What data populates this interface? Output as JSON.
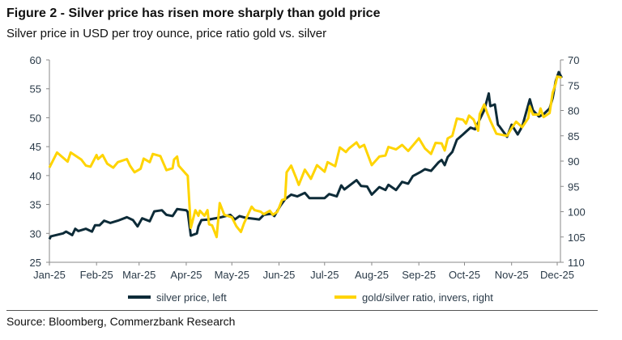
{
  "title": "Figure 2 - Silver price has risen more sharply than gold price",
  "subtitle": "Silver price in USD per troy ounce, price ratio gold vs. silver",
  "source": "Source: Bloomberg, Commerzbank Research",
  "chart_data": {
    "type": "line",
    "title": "Figure 2 - Silver price has risen more sharply than gold price",
    "subtitle": "Silver price in USD per troy ounce, price ratio gold vs. silver",
    "x_tick_labels": [
      "Jan-25",
      "Feb-25",
      "Mar-25",
      "Apr-25",
      "May-25",
      "Jun-25",
      "Jul-25",
      "Aug-25",
      "Sep-25",
      "Oct-25",
      "Nov-25",
      "Dec-25"
    ],
    "y_left": {
      "range": [
        25,
        60
      ],
      "ticks": [
        25,
        30,
        35,
        40,
        45,
        50,
        55,
        60
      ]
    },
    "y_right": {
      "range": [
        70,
        110
      ],
      "inverted": true,
      "ticks": [
        70,
        75,
        80,
        85,
        90,
        95,
        100,
        105,
        110
      ]
    },
    "grid": false,
    "legend_position": "bottom",
    "series": [
      {
        "name": "silver price, left",
        "axis": "left",
        "color": "#0d2b38",
        "points": [
          [
            "2025-01-01",
            29.0
          ],
          [
            "2025-01-02",
            29.5
          ],
          [
            "2025-01-10",
            30.0
          ],
          [
            "2025-01-12",
            30.3
          ],
          [
            "2025-01-16",
            29.7
          ],
          [
            "2025-01-18",
            30.8
          ],
          [
            "2025-01-20",
            30.4
          ],
          [
            "2025-01-25",
            30.8
          ],
          [
            "2025-01-29",
            30.3
          ],
          [
            "2025-01-31",
            31.4
          ],
          [
            "2025-02-03",
            31.4
          ],
          [
            "2025-02-06",
            32.2
          ],
          [
            "2025-02-10",
            31.8
          ],
          [
            "2025-02-15",
            32.2
          ],
          [
            "2025-02-21",
            32.8
          ],
          [
            "2025-02-25",
            32.3
          ],
          [
            "2025-02-28",
            31.2
          ],
          [
            "2025-03-03",
            32.6
          ],
          [
            "2025-03-08",
            32.1
          ],
          [
            "2025-03-11",
            33.8
          ],
          [
            "2025-03-16",
            34.0
          ],
          [
            "2025-03-19",
            33.2
          ],
          [
            "2025-03-23",
            33.0
          ],
          [
            "2025-03-26",
            34.2
          ],
          [
            "2025-04-01",
            34.0
          ],
          [
            "2025-04-02",
            33.7
          ],
          [
            "2025-04-04",
            29.6
          ],
          [
            "2025-04-08",
            30.0
          ],
          [
            "2025-04-09",
            31.2
          ],
          [
            "2025-04-11",
            32.3
          ],
          [
            "2025-04-16",
            32.4
          ],
          [
            "2025-04-24",
            32.8
          ],
          [
            "2025-04-30",
            33.2
          ],
          [
            "2025-05-03",
            32.4
          ],
          [
            "2025-05-06",
            33.0
          ],
          [
            "2025-05-10",
            32.7
          ],
          [
            "2025-05-16",
            32.5
          ],
          [
            "2025-05-19",
            32.4
          ],
          [
            "2025-05-22",
            33.2
          ],
          [
            "2025-05-27",
            33.4
          ],
          [
            "2025-05-29",
            33.0
          ],
          [
            "2025-06-02",
            34.8
          ],
          [
            "2025-06-05",
            35.9
          ],
          [
            "2025-06-09",
            36.7
          ],
          [
            "2025-06-13",
            36.4
          ],
          [
            "2025-06-18",
            37.0
          ],
          [
            "2025-06-21",
            36.1
          ],
          [
            "2025-07-01",
            36.1
          ],
          [
            "2025-07-04",
            36.8
          ],
          [
            "2025-07-09",
            36.4
          ],
          [
            "2025-07-12",
            38.3
          ],
          [
            "2025-07-14",
            37.6
          ],
          [
            "2025-07-22",
            39.2
          ],
          [
            "2025-07-25",
            38.2
          ],
          [
            "2025-07-29",
            38.1
          ],
          [
            "2025-08-01",
            36.7
          ],
          [
            "2025-08-06",
            38.0
          ],
          [
            "2025-08-10",
            37.5
          ],
          [
            "2025-08-12",
            38.4
          ],
          [
            "2025-08-17",
            37.5
          ],
          [
            "2025-08-21",
            38.9
          ],
          [
            "2025-08-25",
            38.6
          ],
          [
            "2025-08-28",
            39.9
          ],
          [
            "2025-09-02",
            40.6
          ],
          [
            "2025-09-05",
            41.1
          ],
          [
            "2025-09-09",
            40.8
          ],
          [
            "2025-09-14",
            42.3
          ],
          [
            "2025-09-16",
            42.7
          ],
          [
            "2025-09-18",
            41.8
          ],
          [
            "2025-09-20",
            43.2
          ],
          [
            "2025-09-23",
            44.1
          ],
          [
            "2025-09-26",
            46.2
          ],
          [
            "2025-09-30",
            47.1
          ],
          [
            "2025-10-02",
            47.6
          ],
          [
            "2025-10-05",
            48.3
          ],
          [
            "2025-10-08",
            48.0
          ],
          [
            "2025-10-11",
            49.7
          ],
          [
            "2025-10-14",
            51.3
          ],
          [
            "2025-10-17",
            54.2
          ],
          [
            "2025-10-18",
            52.0
          ],
          [
            "2025-10-21",
            52.3
          ],
          [
            "2025-10-23",
            48.8
          ],
          [
            "2025-10-24",
            48.5
          ],
          [
            "2025-10-29",
            46.7
          ],
          [
            "2025-11-01",
            48.8
          ],
          [
            "2025-11-05",
            47.1
          ],
          [
            "2025-11-08",
            48.5
          ],
          [
            "2025-11-13",
            53.2
          ],
          [
            "2025-11-15",
            51.3
          ],
          [
            "2025-11-19",
            50.2
          ],
          [
            "2025-11-22",
            50.6
          ],
          [
            "2025-11-26",
            51.6
          ],
          [
            "2025-11-28",
            53.4
          ],
          [
            "2025-11-30",
            56.3
          ],
          [
            "2025-12-02",
            57.9
          ],
          [
            "2025-12-04",
            56.9
          ]
        ]
      },
      {
        "name": "gold/silver ratio, invers, right",
        "axis": "right",
        "color": "#ffd400",
        "points": [
          [
            "2025-01-01",
            91.3
          ],
          [
            "2025-01-06",
            88.3
          ],
          [
            "2025-01-13",
            90.1
          ],
          [
            "2025-01-15",
            88.3
          ],
          [
            "2025-01-22",
            89.7
          ],
          [
            "2025-01-25",
            90.9
          ],
          [
            "2025-01-28",
            91.1
          ],
          [
            "2025-02-01",
            88.8
          ],
          [
            "2025-02-02",
            89.6
          ],
          [
            "2025-02-05",
            88.8
          ],
          [
            "2025-02-08",
            90.5
          ],
          [
            "2025-02-12",
            91.3
          ],
          [
            "2025-02-15",
            90.2
          ],
          [
            "2025-02-21",
            89.6
          ],
          [
            "2025-02-23",
            90.9
          ],
          [
            "2025-02-26",
            92.2
          ],
          [
            "2025-03-02",
            91.5
          ],
          [
            "2025-03-04",
            89.5
          ],
          [
            "2025-03-08",
            90.2
          ],
          [
            "2025-03-10",
            88.6
          ],
          [
            "2025-03-15",
            89.0
          ],
          [
            "2025-03-19",
            91.8
          ],
          [
            "2025-03-23",
            91.4
          ],
          [
            "2025-03-24",
            89.7
          ],
          [
            "2025-03-26",
            89.1
          ],
          [
            "2025-03-27",
            90.9
          ],
          [
            "2025-04-01",
            92.6
          ],
          [
            "2025-04-02",
            92.9
          ],
          [
            "2025-04-04",
            103.2
          ],
          [
            "2025-04-07",
            99.7
          ],
          [
            "2025-04-09",
            100.8
          ],
          [
            "2025-04-10",
            99.8
          ],
          [
            "2025-04-13",
            100.8
          ],
          [
            "2025-04-15",
            99.7
          ],
          [
            "2025-04-16",
            102.5
          ],
          [
            "2025-04-18",
            102.7
          ],
          [
            "2025-04-21",
            105.0
          ],
          [
            "2025-04-23",
            98.3
          ],
          [
            "2025-04-26",
            100.6
          ],
          [
            "2025-05-01",
            101.1
          ],
          [
            "2025-05-04",
            102.9
          ],
          [
            "2025-05-07",
            104.0
          ],
          [
            "2025-05-09",
            102.3
          ],
          [
            "2025-05-14",
            99.0
          ],
          [
            "2025-05-16",
            99.7
          ],
          [
            "2025-05-20",
            100.0
          ],
          [
            "2025-05-22",
            100.5
          ],
          [
            "2025-05-26",
            99.8
          ],
          [
            "2025-05-28",
            100.6
          ],
          [
            "2025-05-31",
            100.0
          ],
          [
            "2025-06-03",
            97.7
          ],
          [
            "2025-06-05",
            97.5
          ],
          [
            "2025-06-06",
            92.2
          ],
          [
            "2025-06-09",
            90.9
          ],
          [
            "2025-06-12",
            93.1
          ],
          [
            "2025-06-14",
            94.7
          ],
          [
            "2025-06-18",
            91.7
          ],
          [
            "2025-06-22",
            93.5
          ],
          [
            "2025-06-26",
            90.8
          ],
          [
            "2025-07-01",
            92.1
          ],
          [
            "2025-07-03",
            90.2
          ],
          [
            "2025-07-08",
            91.0
          ],
          [
            "2025-07-11",
            87.3
          ],
          [
            "2025-07-15",
            88.2
          ],
          [
            "2025-07-17",
            87.5
          ],
          [
            "2025-07-22",
            86.3
          ],
          [
            "2025-07-24",
            87.3
          ],
          [
            "2025-07-27",
            86.8
          ],
          [
            "2025-08-01",
            90.8
          ],
          [
            "2025-08-06",
            89.1
          ],
          [
            "2025-08-10",
            88.9
          ],
          [
            "2025-08-12",
            87.2
          ],
          [
            "2025-08-17",
            87.7
          ],
          [
            "2025-08-21",
            86.8
          ],
          [
            "2025-08-25",
            88.0
          ],
          [
            "2025-09-01",
            85.5
          ],
          [
            "2025-09-05",
            87.5
          ],
          [
            "2025-09-09",
            88.6
          ],
          [
            "2025-09-12",
            86.4
          ],
          [
            "2025-09-16",
            86.5
          ],
          [
            "2025-09-18",
            87.9
          ],
          [
            "2025-09-20",
            85.5
          ],
          [
            "2025-09-23",
            85.0
          ],
          [
            "2025-09-26",
            81.6
          ],
          [
            "2025-09-30",
            81.8
          ],
          [
            "2025-10-02",
            82.6
          ],
          [
            "2025-10-04",
            81.0
          ],
          [
            "2025-10-07",
            81.8
          ],
          [
            "2025-10-10",
            84.0
          ],
          [
            "2025-10-11",
            80.7
          ],
          [
            "2025-10-14",
            78.8
          ],
          [
            "2025-10-16",
            80.5
          ],
          [
            "2025-10-18",
            82.0
          ],
          [
            "2025-10-22",
            84.6
          ],
          [
            "2025-10-29",
            85.0
          ],
          [
            "2025-11-01",
            83.5
          ],
          [
            "2025-11-04",
            82.2
          ],
          [
            "2025-11-08",
            83.3
          ],
          [
            "2025-11-12",
            81.5
          ],
          [
            "2025-11-13",
            79.2
          ],
          [
            "2025-11-15",
            80.8
          ],
          [
            "2025-11-19",
            80.8
          ],
          [
            "2025-11-20",
            79.6
          ],
          [
            "2025-11-22",
            81.3
          ],
          [
            "2025-11-26",
            80.5
          ],
          [
            "2025-11-28",
            76.5
          ],
          [
            "2025-11-30",
            74.7
          ],
          [
            "2025-12-01",
            73.3
          ],
          [
            "2025-12-04",
            73.5
          ]
        ]
      }
    ]
  }
}
